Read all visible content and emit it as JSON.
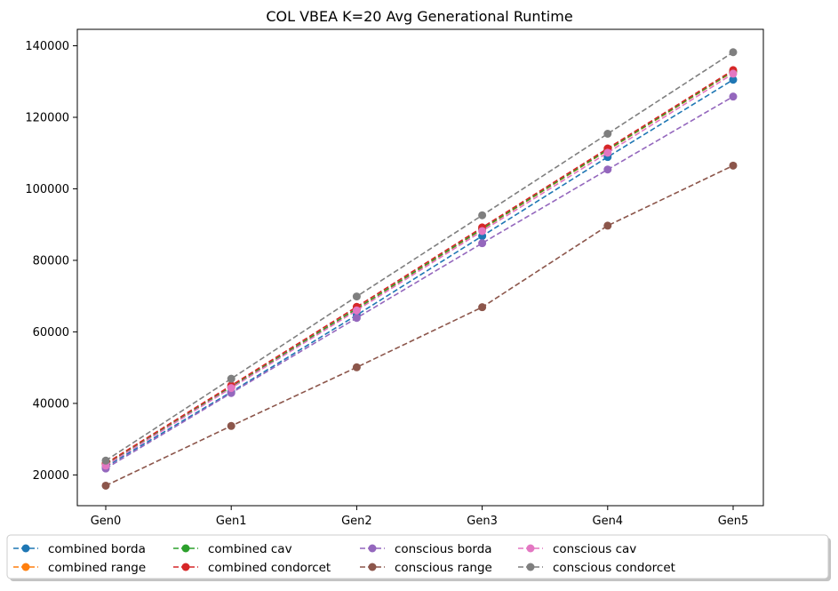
{
  "chart_data": {
    "type": "line",
    "title": "COL VBEA K=20 Avg Generational Runtime",
    "xlabel": "",
    "ylabel": "",
    "categories": [
      "Gen0",
      "Gen1",
      "Gen2",
      "Gen3",
      "Gen4",
      "Gen5"
    ],
    "ylim": [
      11400,
      144600
    ],
    "yticks": [
      20000,
      40000,
      60000,
      80000,
      100000,
      120000,
      140000
    ],
    "grid": false,
    "legend_position": "bottom",
    "line_style": "dashed",
    "marker": "circle",
    "series": [
      {
        "name": "combined borda",
        "color": "#1f77b4",
        "values": [
          22300,
          43200,
          64700,
          86800,
          108900,
          130500
        ]
      },
      {
        "name": "combined range",
        "color": "#ff7f0e",
        "values": [
          22900,
          44500,
          66400,
          88700,
          110800,
          132800
        ]
      },
      {
        "name": "combined cav",
        "color": "#2ca02c",
        "values": [
          23000,
          44600,
          66500,
          88800,
          110900,
          132900
        ]
      },
      {
        "name": "combined condorcet",
        "color": "#d62728",
        "values": [
          23200,
          45000,
          67000,
          89200,
          111300,
          133200
        ]
      },
      {
        "name": "conscious borda",
        "color": "#9467bd",
        "values": [
          21800,
          42900,
          63900,
          84800,
          105400,
          125800
        ]
      },
      {
        "name": "conscious range",
        "color": "#8c564b",
        "values": [
          17000,
          33700,
          50100,
          66900,
          89700,
          106500
        ]
      },
      {
        "name": "conscious cav",
        "color": "#e377c2",
        "values": [
          22600,
          44300,
          66000,
          88200,
          110100,
          132200
        ]
      },
      {
        "name": "conscious condorcet",
        "color": "#7f7f7f",
        "values": [
          24000,
          46900,
          69900,
          92600,
          115400,
          138200
        ]
      }
    ]
  }
}
